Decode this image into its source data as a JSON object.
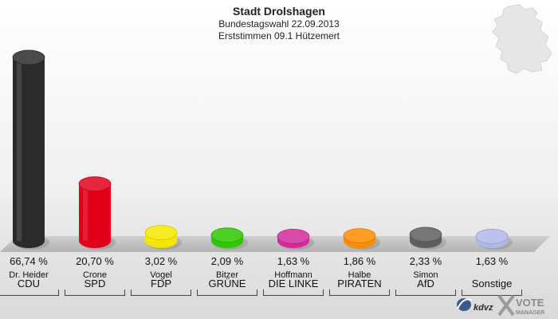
{
  "header": {
    "title": "Stadt Drolshagen",
    "subtitle_1": "Bundestagswahl 22.09.2013",
    "subtitle_2": "Erststimmen 09.1 Hützemert"
  },
  "chart_data": {
    "type": "bar",
    "categories": [
      "CDU",
      "SPD",
      "FDP",
      "GRÜNE",
      "DIE LINKE",
      "PIRATEN",
      "AfD",
      "Sonstige"
    ],
    "candidates": [
      "Dr. Heider",
      "Crone",
      "Vogel",
      "Bitzer",
      "Hoffmann",
      "Halbe",
      "Simon",
      ""
    ],
    "values": [
      66.74,
      20.7,
      3.02,
      2.09,
      1.63,
      1.86,
      2.33,
      1.63
    ],
    "value_labels": [
      "66,74 %",
      "20,70 %",
      "3,02 %",
      "2,09 %",
      "1,63 %",
      "1,86 %",
      "2,33 %",
      "1,63 %"
    ],
    "colors": [
      "#2b2b2b",
      "#e0001a",
      "#f5e600",
      "#2ec600",
      "#d42a99",
      "#ff8c00",
      "#5e5e5e",
      "#b0b8e8"
    ],
    "ylim": [
      0,
      66.74
    ],
    "grid": false
  },
  "logo": {
    "brand_text": "kdvz",
    "vote_text": "VOTE",
    "manager_text": "MANAGER"
  }
}
